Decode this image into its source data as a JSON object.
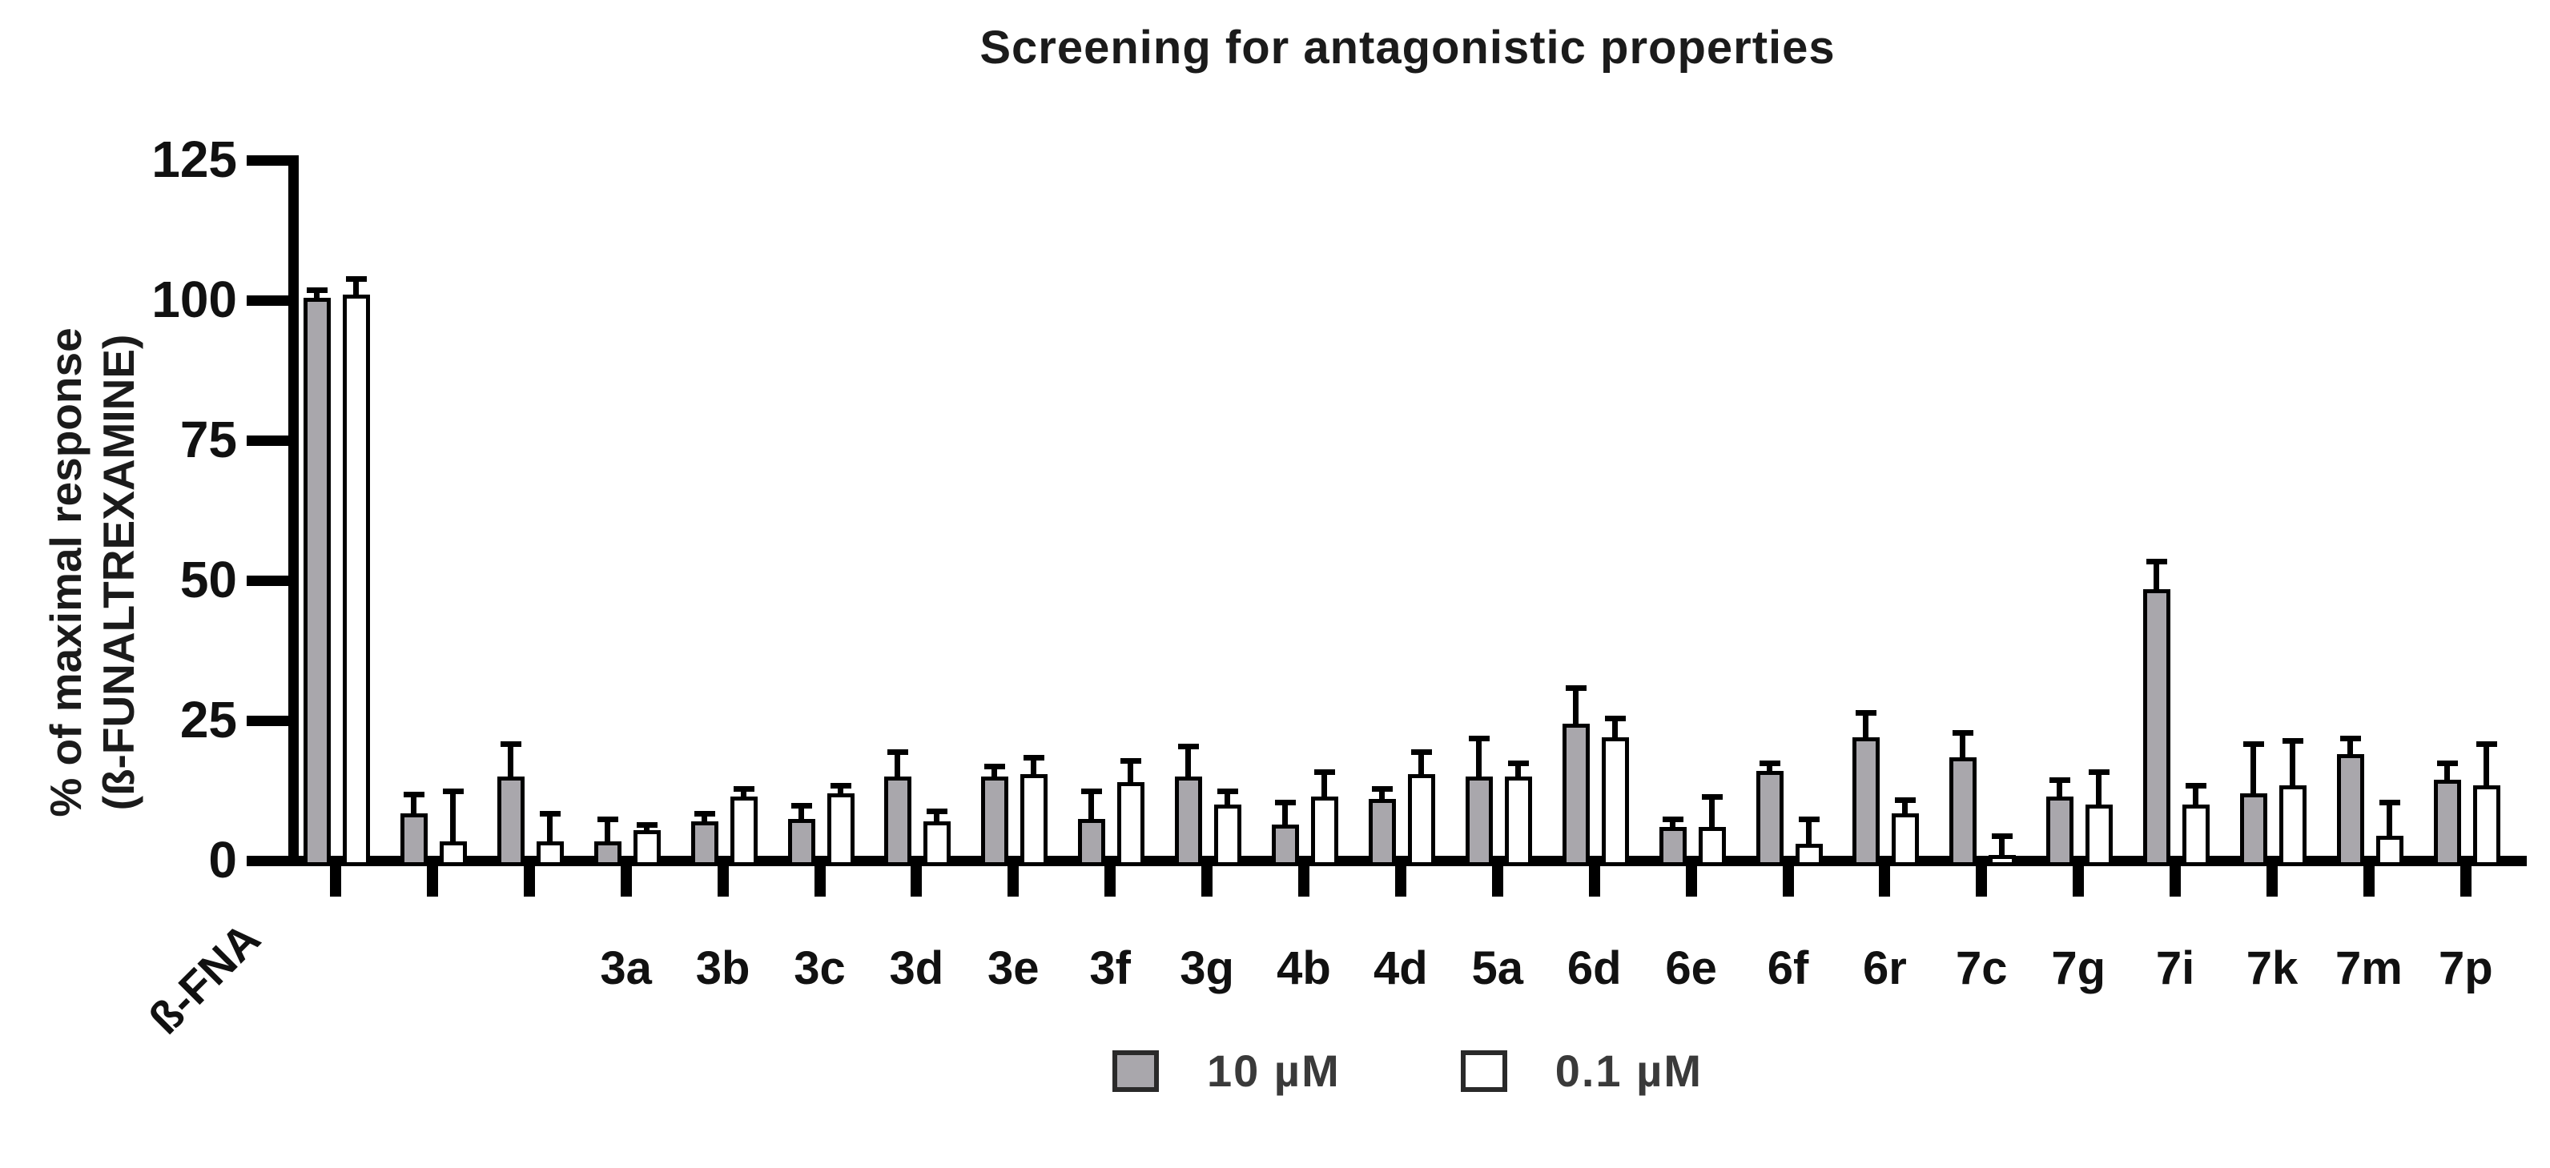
{
  "chart_data": {
    "type": "bar",
    "title": "Screening for antagonistic properties",
    "ylabel_line1": "% of maximal response",
    "ylabel_line2": "(ß-FUNALTREXAMINE)",
    "ylim": [
      0,
      125
    ],
    "yticks": [
      0,
      25,
      50,
      75,
      100,
      125
    ],
    "grid": false,
    "legend_position": "bottom",
    "categories": [
      "ß-FNA",
      "",
      "",
      "3a",
      "3b",
      "3c",
      "3d",
      "3e",
      "3f",
      "3g",
      "4b",
      "4d",
      "5a",
      "6d",
      "6e",
      "6f",
      "6r",
      "7c",
      "7g",
      "7i",
      "7k",
      "7m",
      "7p"
    ],
    "series": [
      {
        "name": "10 µM",
        "color": "#a9a7ac",
        "values": [
          100.5,
          8.5,
          15,
          3.5,
          7,
          7.5,
          15,
          15,
          7.5,
          15,
          6.5,
          11,
          15,
          24.5,
          6,
          16,
          22,
          18.5,
          11.5,
          48.5,
          12,
          19,
          14.5
        ],
        "errors": [
          1,
          3,
          5.5,
          3.5,
          1,
          2,
          4,
          1.5,
          4.5,
          5,
          3.5,
          1.5,
          6.5,
          6,
          1,
          1,
          4,
          4,
          2.5,
          4.5,
          8.5,
          2.5,
          2.5
        ]
      },
      {
        "name": "0.1 µM",
        "color": "#ffffff",
        "values": [
          101,
          3.5,
          3.5,
          5.5,
          11.5,
          12,
          7,
          15.5,
          14,
          10,
          11.5,
          15.5,
          15,
          22,
          6,
          3,
          8.5,
          1,
          10,
          10,
          13.5,
          4.5,
          13.5
        ],
        "errors": [
          2.5,
          8.5,
          4.5,
          0.5,
          1,
          1,
          1.5,
          2.5,
          3.5,
          2,
          4,
          3.5,
          2,
          3,
          5,
          4,
          2,
          3,
          5.5,
          3,
          7.5,
          5.5,
          7
        ]
      }
    ]
  }
}
